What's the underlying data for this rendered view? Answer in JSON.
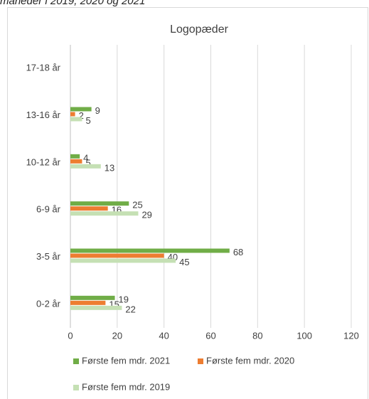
{
  "caption": "måneder i 2019, 2020 og 2021",
  "chart_data": {
    "type": "barh",
    "title": "Logopæder",
    "categories": [
      "0-2 år",
      "3-5 år",
      "6-9 år",
      "10-12 år",
      "13-16 år",
      "17-18 år"
    ],
    "series": [
      {
        "name": "Første fem mdr. 2021",
        "color": "#70ad47",
        "values": [
          19,
          68,
          25,
          4,
          9,
          null
        ]
      },
      {
        "name": "Første fem mdr. 2020",
        "color": "#ed7d31",
        "values": [
          15,
          40,
          16,
          5,
          2,
          null
        ]
      },
      {
        "name": "Første fem mdr. 2019",
        "color": "#c5e0b4",
        "values": [
          22,
          45,
          29,
          13,
          5,
          null
        ]
      }
    ],
    "xlim": [
      0,
      120
    ],
    "xticks": [
      0,
      20,
      40,
      60,
      80,
      100,
      120
    ],
    "grid": true,
    "legend": "bottom"
  }
}
